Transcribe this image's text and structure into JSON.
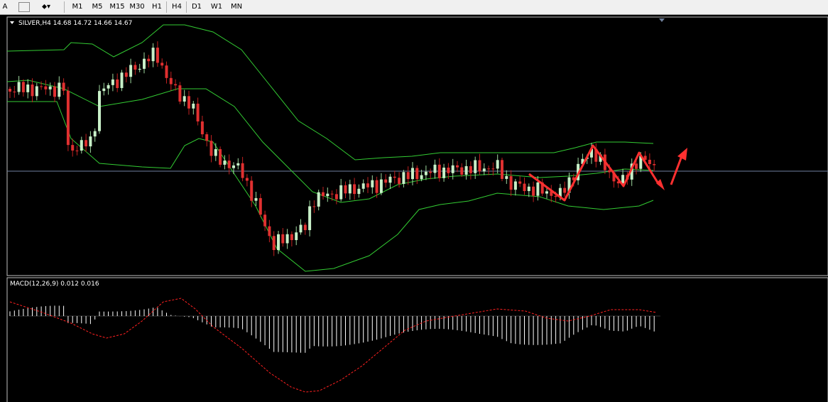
{
  "toolbar": {
    "text_tool": "A",
    "timeframes": [
      "M1",
      "M5",
      "M15",
      "M30",
      "H1",
      "H4",
      "D1",
      "W1",
      "MN"
    ]
  },
  "main_chart": {
    "header": "SILVER,H4  14.68 14.72 14.66 14.67"
  },
  "macd_panel": {
    "header": "MACD(12,26,9) 0.012 0.016"
  }
}
